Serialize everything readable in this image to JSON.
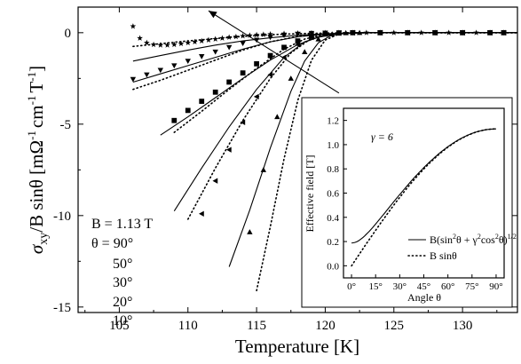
{
  "chart_data": [
    {
      "type": "scatter",
      "xlabel": "Temperature [K]",
      "ylabel_main": "σ",
      "ylabel_sub": "xy",
      "ylabel_rest": "/B sinθ [mΩ",
      "ylabel_unit_tail": "cm",
      "ylabel_close": "T",
      "ylabel_exp": "-1",
      "xlim": [
        102,
        134
      ],
      "ylim": [
        -15.3,
        1.4
      ],
      "xticks": [
        105,
        110,
        115,
        120,
        125,
        130
      ],
      "yticks": [
        0,
        -5,
        -10,
        -15
      ],
      "ytick_labels": [
        "0",
        "-5",
        "-10",
        "-15"
      ],
      "annotations": {
        "field": "B = 1.13 T",
        "theta_header": "θ = 90°",
        "angles": [
          "50°",
          "30°",
          "20°",
          "10°"
        ]
      },
      "series": [
        {
          "marker": "star",
          "points": [
            [
              106.0,
              0.35
            ],
            [
              106.5,
              -0.3
            ],
            [
              107.0,
              -0.55
            ],
            [
              107.5,
              -0.65
            ],
            [
              108.0,
              -0.68
            ],
            [
              108.5,
              -0.68
            ],
            [
              109.0,
              -0.65
            ],
            [
              109.5,
              -0.6
            ],
            [
              110.0,
              -0.55
            ],
            [
              110.5,
              -0.5
            ],
            [
              111.0,
              -0.45
            ],
            [
              111.5,
              -0.4
            ],
            [
              112.0,
              -0.35
            ],
            [
              112.5,
              -0.3
            ],
            [
              113.0,
              -0.25
            ],
            [
              113.5,
              -0.22
            ],
            [
              114.0,
              -0.18
            ],
            [
              114.5,
              -0.15
            ],
            [
              115.0,
              -0.12
            ],
            [
              115.5,
              -0.1
            ],
            [
              116.0,
              -0.08
            ],
            [
              117.0,
              -0.05
            ],
            [
              118.0,
              -0.03
            ],
            [
              119.0,
              -0.02
            ],
            [
              120.0,
              -0.01
            ],
            [
              121.0,
              0.0
            ],
            [
              122.0,
              0.0
            ],
            [
              123.0,
              0.0
            ],
            [
              124.0,
              0.0
            ],
            [
              125.0,
              0.0
            ],
            [
              126.0,
              0.0
            ],
            [
              127.0,
              0.0
            ],
            [
              128.0,
              0.0
            ],
            [
              129.0,
              0.0
            ],
            [
              130.0,
              0.0
            ],
            [
              131.0,
              0.0
            ],
            [
              132.0,
              0.0
            ],
            [
              133.0,
              0.0
            ]
          ],
          "fit_solid": [
            [
              106.0,
              -1.55
            ],
            [
              108.0,
              -1.25
            ],
            [
              110.0,
              -0.95
            ],
            [
              112.0,
              -0.68
            ],
            [
              114.0,
              -0.45
            ],
            [
              116.0,
              -0.28
            ],
            [
              118.0,
              -0.14
            ],
            [
              120.0,
              -0.06
            ],
            [
              122.0,
              -0.02
            ],
            [
              124.0,
              0.0
            ],
            [
              134.0,
              0.0
            ]
          ],
          "fit_dotted": [
            [
              106.0,
              -0.75
            ],
            [
              108.0,
              -0.6
            ],
            [
              110.0,
              -0.45
            ],
            [
              112.0,
              -0.32
            ],
            [
              114.0,
              -0.2
            ],
            [
              116.0,
              -0.11
            ],
            [
              118.0,
              -0.05
            ],
            [
              120.0,
              -0.02
            ],
            [
              122.0,
              0.0
            ],
            [
              134.0,
              0.0
            ]
          ]
        },
        {
          "marker": "triangle-down",
          "points": [
            [
              106.0,
              -2.55
            ],
            [
              107.0,
              -2.3
            ],
            [
              108.0,
              -2.05
            ],
            [
              109.0,
              -1.8
            ],
            [
              110.0,
              -1.55
            ],
            [
              111.0,
              -1.3
            ],
            [
              112.0,
              -1.05
            ],
            [
              113.0,
              -0.8
            ],
            [
              114.0,
              -0.58
            ],
            [
              115.0,
              -0.4
            ],
            [
              116.0,
              -0.25
            ],
            [
              117.0,
              -0.14
            ],
            [
              118.0,
              -0.07
            ],
            [
              119.0,
              -0.03
            ],
            [
              120.0,
              -0.01
            ],
            [
              121.0,
              0.0
            ],
            [
              122.0,
              0.0
            ],
            [
              124.0,
              0.0
            ],
            [
              126.0,
              0.0
            ],
            [
              128.0,
              0.0
            ],
            [
              130.0,
              0.0
            ],
            [
              132.0,
              0.0
            ],
            [
              133.0,
              0.0
            ]
          ],
          "fit_solid": [
            [
              106.0,
              -2.7
            ],
            [
              108.0,
              -2.25
            ],
            [
              110.0,
              -1.8
            ],
            [
              112.0,
              -1.35
            ],
            [
              114.0,
              -0.9
            ],
            [
              116.0,
              -0.5
            ],
            [
              118.0,
              -0.22
            ],
            [
              120.0,
              -0.07
            ],
            [
              122.0,
              -0.01
            ],
            [
              124.0,
              0.0
            ],
            [
              134.0,
              0.0
            ]
          ],
          "fit_dotted": [
            [
              106.0,
              -3.1
            ],
            [
              108.0,
              -2.6
            ],
            [
              110.0,
              -2.05
            ],
            [
              112.0,
              -1.5
            ],
            [
              114.0,
              -0.95
            ],
            [
              116.0,
              -0.5
            ],
            [
              118.0,
              -0.2
            ],
            [
              120.0,
              -0.05
            ],
            [
              122.0,
              0.0
            ],
            [
              134.0,
              0.0
            ]
          ]
        },
        {
          "marker": "square",
          "points": [
            [
              109.0,
              -4.8
            ],
            [
              110.0,
              -4.25
            ],
            [
              111.0,
              -3.75
            ],
            [
              112.0,
              -3.25
            ],
            [
              113.0,
              -2.7
            ],
            [
              114.0,
              -2.2
            ],
            [
              115.0,
              -1.7
            ],
            [
              116.0,
              -1.25
            ],
            [
              117.0,
              -0.8
            ],
            [
              118.0,
              -0.45
            ],
            [
              119.0,
              -0.2
            ],
            [
              120.0,
              -0.07
            ],
            [
              121.0,
              -0.02
            ],
            [
              122.0,
              0.0
            ],
            [
              124.0,
              0.0
            ],
            [
              126.0,
              0.0
            ],
            [
              128.0,
              0.0
            ],
            [
              130.0,
              0.0
            ],
            [
              132.0,
              0.0
            ],
            [
              133.0,
              0.0
            ]
          ],
          "fit_solid": [
            [
              108.0,
              -5.6
            ],
            [
              110.0,
              -4.6
            ],
            [
              112.0,
              -3.55
            ],
            [
              114.0,
              -2.5
            ],
            [
              116.0,
              -1.5
            ],
            [
              118.0,
              -0.65
            ],
            [
              119.5,
              -0.25
            ],
            [
              121.0,
              -0.05
            ],
            [
              123.0,
              0.0
            ],
            [
              134.0,
              0.0
            ]
          ],
          "fit_dotted": [
            [
              109.0,
              -5.45
            ],
            [
              111.0,
              -4.3
            ],
            [
              113.0,
              -3.1
            ],
            [
              115.0,
              -1.95
            ],
            [
              117.0,
              -0.9
            ],
            [
              118.5,
              -0.35
            ],
            [
              120.0,
              -0.08
            ],
            [
              122.0,
              0.0
            ],
            [
              134.0,
              0.0
            ]
          ]
        },
        {
          "marker": "triangle-left",
          "points": [
            [
              111.0,
              -9.9
            ],
            [
              112.0,
              -8.1
            ],
            [
              113.0,
              -6.4
            ],
            [
              114.0,
              -4.9
            ],
            [
              115.0,
              -3.5
            ],
            [
              116.0,
              -2.3
            ],
            [
              117.0,
              -1.35
            ],
            [
              118.0,
              -0.65
            ],
            [
              119.0,
              -0.25
            ],
            [
              120.0,
              -0.08
            ],
            [
              121.0,
              -0.02
            ],
            [
              122.0,
              0.0
            ],
            [
              124.0,
              0.0
            ],
            [
              126.0,
              0.0
            ],
            [
              128.0,
              0.0
            ],
            [
              130.0,
              0.0
            ],
            [
              132.0,
              0.0
            ],
            [
              133.0,
              0.0
            ]
          ],
          "fit_solid": [
            [
              109.0,
              -9.75
            ],
            [
              111.0,
              -7.4
            ],
            [
              113.0,
              -5.15
            ],
            [
              115.0,
              -3.1
            ],
            [
              117.0,
              -1.35
            ],
            [
              118.5,
              -0.5
            ],
            [
              120.0,
              -0.12
            ],
            [
              122.0,
              0.0
            ],
            [
              134.0,
              0.0
            ]
          ],
          "fit_dotted": [
            [
              110.0,
              -10.2
            ],
            [
              112.0,
              -7.4
            ],
            [
              114.0,
              -4.8
            ],
            [
              116.0,
              -2.5
            ],
            [
              117.5,
              -1.1
            ],
            [
              119.0,
              -0.3
            ],
            [
              120.5,
              -0.05
            ],
            [
              122.0,
              0.0
            ],
            [
              134.0,
              0.0
            ]
          ]
        },
        {
          "marker": "triangle-up",
          "points": [
            [
              114.5,
              -10.9
            ],
            [
              115.5,
              -7.5
            ],
            [
              116.5,
              -4.6
            ],
            [
              117.5,
              -2.5
            ],
            [
              118.5,
              -1.05
            ],
            [
              119.5,
              -0.35
            ],
            [
              120.5,
              -0.08
            ],
            [
              121.5,
              -0.01
            ],
            [
              122.5,
              0.0
            ],
            [
              124.0,
              0.0
            ],
            [
              126.0,
              0.0
            ],
            [
              128.0,
              0.0
            ],
            [
              130.0,
              0.0
            ],
            [
              132.0,
              0.0
            ],
            [
              133.0,
              0.0
            ]
          ],
          "fit_solid": [
            [
              113.0,
              -12.8
            ],
            [
              114.5,
              -9.7
            ],
            [
              116.0,
              -6.3
            ],
            [
              117.5,
              -3.2
            ],
            [
              118.5,
              -1.55
            ],
            [
              119.5,
              -0.55
            ],
            [
              120.5,
              -0.12
            ],
            [
              122.0,
              0.0
            ],
            [
              134.0,
              0.0
            ]
          ],
          "fit_dotted": [
            [
              115.0,
              -14.1
            ],
            [
              116.0,
              -10.6
            ],
            [
              117.0,
              -6.9
            ],
            [
              118.0,
              -3.7
            ],
            [
              119.0,
              -1.5
            ],
            [
              120.0,
              -0.4
            ],
            [
              121.0,
              -0.07
            ],
            [
              122.5,
              0.0
            ],
            [
              134.0,
              0.0
            ]
          ]
        }
      ],
      "arrow": {
        "from": [
          121.0,
          -3.3
        ],
        "to": [
          111.5,
          1.2
        ]
      }
    },
    {
      "type": "line",
      "xlabel": "Angle θ",
      "ylabel": "Effective field [T]",
      "xlim": [
        -5,
        95
      ],
      "ylim": [
        -0.1,
        1.3
      ],
      "xticks": [
        0,
        15,
        30,
        45,
        60,
        75,
        90
      ],
      "xtick_labels": [
        "0°",
        "15°",
        "30°",
        "45°",
        "60°",
        "75°",
        "90°"
      ],
      "yticks": [
        0.0,
        0.2,
        0.4,
        0.6,
        0.8,
        1.0,
        1.2
      ],
      "ytick_labels": [
        "0.0",
        "0.2",
        "0.4",
        "0.6",
        "0.8",
        "1.0",
        "1.2"
      ],
      "gamma_label": "γ = 6",
      "B": 1.13,
      "gamma": 6,
      "legend": [
        {
          "style": "solid",
          "label_parts": [
            "B(sin",
            "2",
            "θ + γ",
            "2",
            "cos",
            "2",
            "θ)",
            "1/2"
          ]
        },
        {
          "style": "dotted",
          "label": "B sinθ"
        }
      ]
    }
  ]
}
